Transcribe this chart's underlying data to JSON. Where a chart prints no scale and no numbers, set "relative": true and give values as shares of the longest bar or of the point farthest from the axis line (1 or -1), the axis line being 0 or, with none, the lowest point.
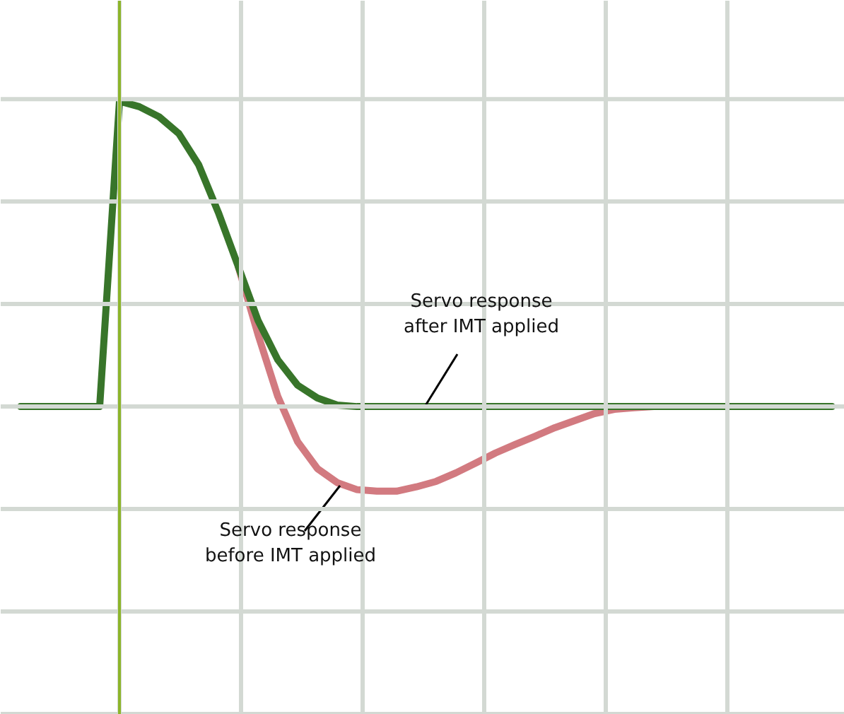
{
  "chart_data": {
    "type": "line",
    "relative": true,
    "categories": [
      null,
      null,
      null,
      null,
      null,
      null,
      null,
      null,
      null,
      null,
      null,
      null,
      null,
      null,
      null,
      null,
      null,
      null,
      null,
      null,
      null,
      null,
      null,
      null,
      null,
      null,
      null,
      null,
      null,
      null,
      null,
      null,
      null,
      null,
      null,
      null,
      null,
      null,
      null,
      null,
      null,
      null
    ],
    "series": [
      {
        "color": "#d27a80",
        "values": [
          null,
          null,
          null,
          null,
          null,
          null,
          null,
          null,
          null,
          null,
          null,
          0.459,
          0.236,
          0.033,
          -0.115,
          -0.203,
          -0.249,
          -0.272,
          -0.277,
          -0.277,
          -0.263,
          -0.245,
          -0.217,
          -0.185,
          -0.152,
          -0.124,
          -0.097,
          -0.069,
          -0.046,
          -0.023,
          -0.009,
          -0.004,
          0,
          null,
          null,
          null,
          null,
          null,
          null,
          null,
          null,
          null
        ]
      },
      {
        "color": "#38752a",
        "values": [
          0,
          0,
          0,
          0,
          0,
          1,
          0.982,
          0.949,
          0.894,
          0.792,
          0.635,
          0.459,
          0.282,
          0.153,
          0.07,
          0.028,
          0.005,
          0,
          0,
          0,
          0,
          0,
          0,
          0,
          0,
          0,
          0,
          0,
          0,
          0,
          0,
          0,
          0,
          0,
          0,
          0,
          0,
          0,
          0,
          0,
          0,
          0
        ]
      }
    ],
    "annotations": [
      "Servo response\nafter IMT applied",
      "Servo response\nbefore IMT applied"
    ],
    "grid": true,
    "line_style": "solid",
    "marker": "none"
  }
}
